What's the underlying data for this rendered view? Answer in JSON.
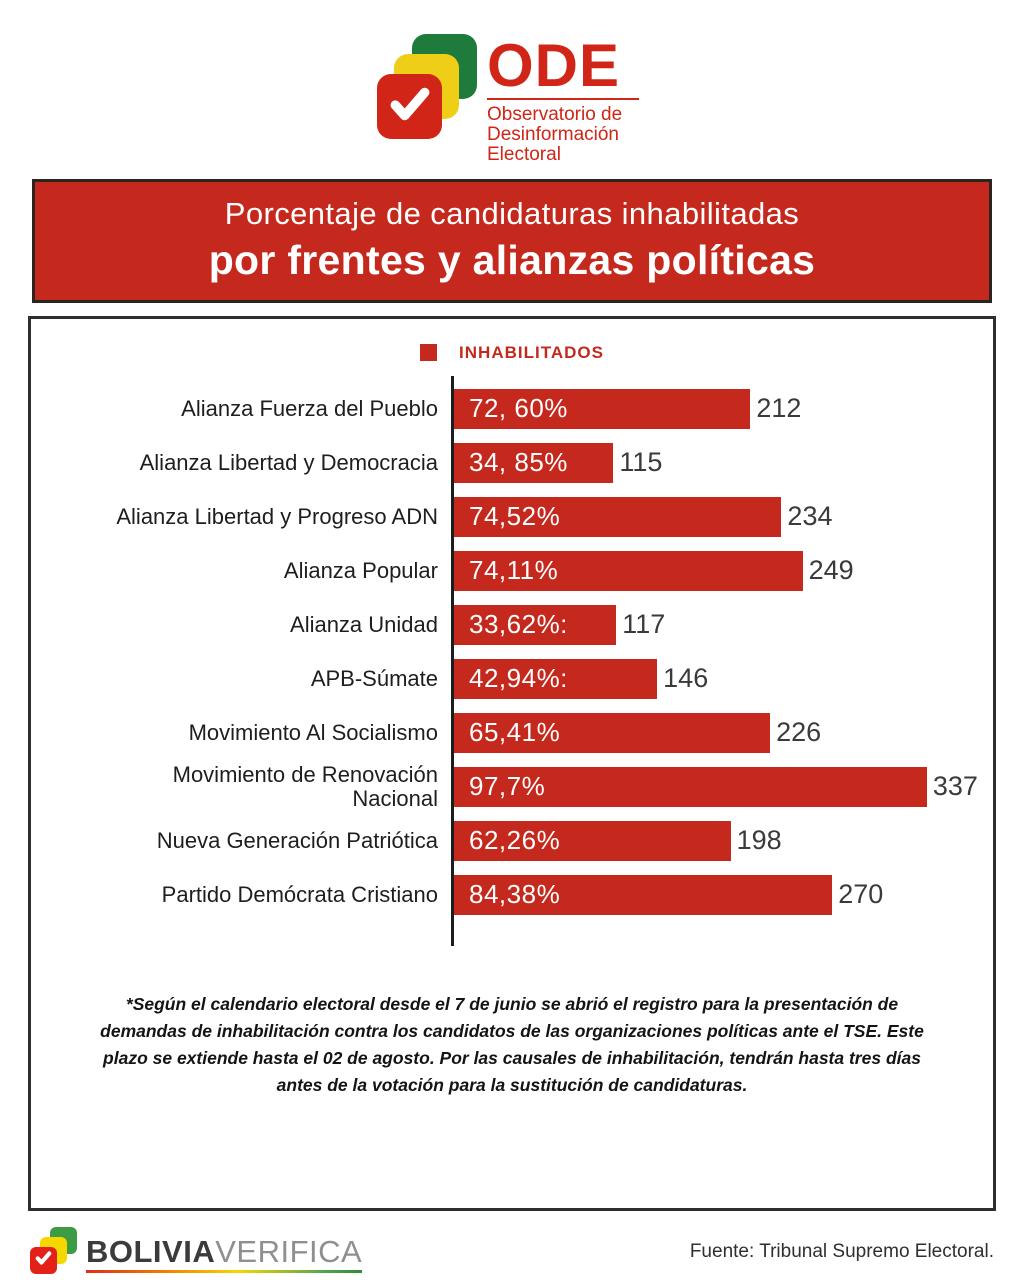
{
  "header_logo": {
    "title": "ODE",
    "subtitle_lines": [
      "Observatorio de",
      "Desinformación",
      "Electoral"
    ],
    "colors": {
      "red": "#d02517",
      "yellow": "#efce18",
      "green": "#1e7b3c"
    }
  },
  "banner": {
    "line1": "Porcentaje de candidaturas inhabilitadas",
    "line2": "por frentes y alianzas políticas",
    "background": "#c5281c"
  },
  "chart_data": {
    "type": "bar",
    "orientation": "horizontal",
    "title": "Porcentaje de candidaturas inhabilitadas por frentes y alianzas políticas",
    "legend_entries": [
      "INHABILITADOS"
    ],
    "legend_position": "top-center",
    "bar_color": "#c5281c",
    "grid": false,
    "xlim": [
      0,
      337
    ],
    "categories": [
      "Alianza Fuerza del Pueblo",
      "Alianza Libertad y Democracia",
      "Alianza Libertad y Progreso ADN",
      "Alianza Popular",
      "Alianza Unidad",
      "APB-Súmate",
      "Movimiento Al Socialismo",
      "Movimiento de Renovación\nNacional",
      "Nueva Generación Patriótica",
      "Partido Demócrata Cristiano"
    ],
    "values": [
      212,
      115,
      234,
      249,
      117,
      146,
      226,
      337,
      198,
      270
    ],
    "percent_labels": [
      "72, 60%",
      "34, 85%",
      "74,52%",
      "74,11%",
      "33,62%:",
      "42,94%:",
      "65,41%",
      "97,7%",
      "62,26%",
      "84,38%"
    ]
  },
  "footnote": "*Según el calendario electoral desde el 7 de junio se abrió el registro para la presentación de demandas de inhabilitación contra los candidatos de las organizaciones políticas ante el TSE. Este plazo se extiende hasta el 02 de agosto. Por las causales de inhabilitación, tendrán  hasta tres días antes de la votación para la sustitución de candidaturas.",
  "footer": {
    "brand_bold": "BOLIVIA",
    "brand_light": "VERIFICA",
    "source": "Fuente: Tribunal Supremo Electoral."
  }
}
